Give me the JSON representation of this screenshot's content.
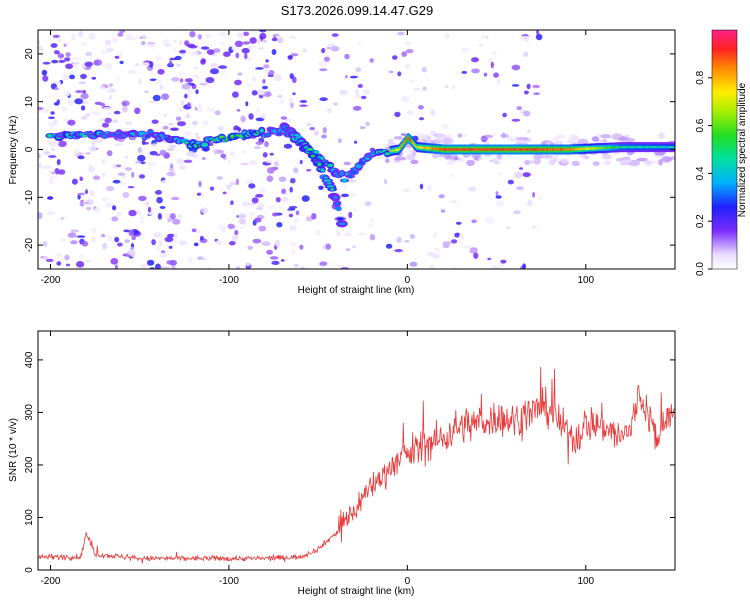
{
  "title": "S173.2026.099.14.47.G29",
  "colors": {
    "snr_line": "#e83a3a",
    "frame": "#000000"
  },
  "chart_data": [
    {
      "type": "heatmap",
      "name": "spectrogram",
      "xlabel": "Height of straight line (km)",
      "ylabel": "Frequency (Hz)",
      "xlim": [
        -207,
        150
      ],
      "ylim": [
        -25,
        25
      ],
      "xticks": [
        -200,
        -100,
        0,
        100
      ],
      "yticks": [
        -20,
        -10,
        0,
        10,
        20
      ],
      "colorbar": {
        "label": "Normalized spectral amplitude",
        "range": [
          0,
          1
        ],
        "ticks": [
          "0.0",
          "0.2",
          "0.4",
          "0.6",
          "0.8"
        ],
        "tick_values": [
          0,
          0.2,
          0.4,
          0.6,
          0.8
        ]
      },
      "ridge": [
        {
          "x": -190,
          "y": 3,
          "amp": 0.45
        },
        {
          "x": -140,
          "y": 3,
          "amp": 0.35
        },
        {
          "x": -120,
          "y": 1,
          "amp": 0.5
        },
        {
          "x": -95,
          "y": 3,
          "amp": 0.55
        },
        {
          "x": -70,
          "y": 4,
          "amp": 0.35
        },
        {
          "x": -55,
          "y": 0,
          "amp": 0.45
        },
        {
          "x": -45,
          "y": -3,
          "amp": 0.45
        },
        {
          "x": -35,
          "y": -6,
          "amp": 0.4
        },
        {
          "x": -20,
          "y": -1,
          "amp": 0.35
        },
        {
          "x": -5,
          "y": 0,
          "amp": 0.8
        },
        {
          "x": 0,
          "y": 2.5,
          "amp": 0.95
        },
        {
          "x": 5,
          "y": 0.5,
          "amp": 0.75
        },
        {
          "x": 20,
          "y": 0,
          "amp": 0.95
        },
        {
          "x": 60,
          "y": 0,
          "amp": 0.95
        },
        {
          "x": 90,
          "y": 0,
          "amp": 0.9
        },
        {
          "x": 120,
          "y": 0.5,
          "amp": 0.5
        },
        {
          "x": 150,
          "y": 0.5,
          "amp": 0.45
        }
      ],
      "branch": [
        {
          "x": -70,
          "y": 5,
          "amp": 0.35
        },
        {
          "x": -60,
          "y": 2,
          "amp": 0.45
        },
        {
          "x": -50,
          "y": -3,
          "amp": 0.5
        },
        {
          "x": -40,
          "y": -10,
          "amp": 0.4
        },
        {
          "x": -36,
          "y": -17,
          "amp": 0.3
        }
      ]
    },
    {
      "type": "line",
      "name": "snr",
      "xlabel": "Height of straight line (km)",
      "ylabel": "SNR (10 * v/v)",
      "xlim": [
        -207,
        150
      ],
      "ylim": [
        0,
        455
      ],
      "xticks": [
        -200,
        -100,
        0,
        100
      ],
      "yticks": [
        0,
        100,
        200,
        300,
        400
      ],
      "series": [
        {
          "name": "SNR",
          "x": [
            -207,
            -190,
            -183,
            -180,
            -175,
            -150,
            -120,
            -100,
            -80,
            -60,
            -50,
            -40,
            -35,
            -30,
            -25,
            -20,
            -15,
            -10,
            -5,
            0,
            10,
            20,
            25,
            30,
            40,
            50,
            60,
            70,
            75,
            80,
            90,
            95,
            100,
            110,
            120,
            125,
            130,
            135,
            140,
            145,
            150
          ],
          "y": [
            25,
            25,
            25,
            70,
            30,
            22,
            22,
            22,
            22,
            25,
            40,
            70,
            95,
            110,
            140,
            160,
            175,
            195,
            210,
            220,
            240,
            250,
            265,
            275,
            280,
            290,
            285,
            300,
            310,
            305,
            260,
            250,
            280,
            275,
            250,
            270,
            330,
            300,
            240,
            300,
            290
          ]
        }
      ]
    }
  ]
}
